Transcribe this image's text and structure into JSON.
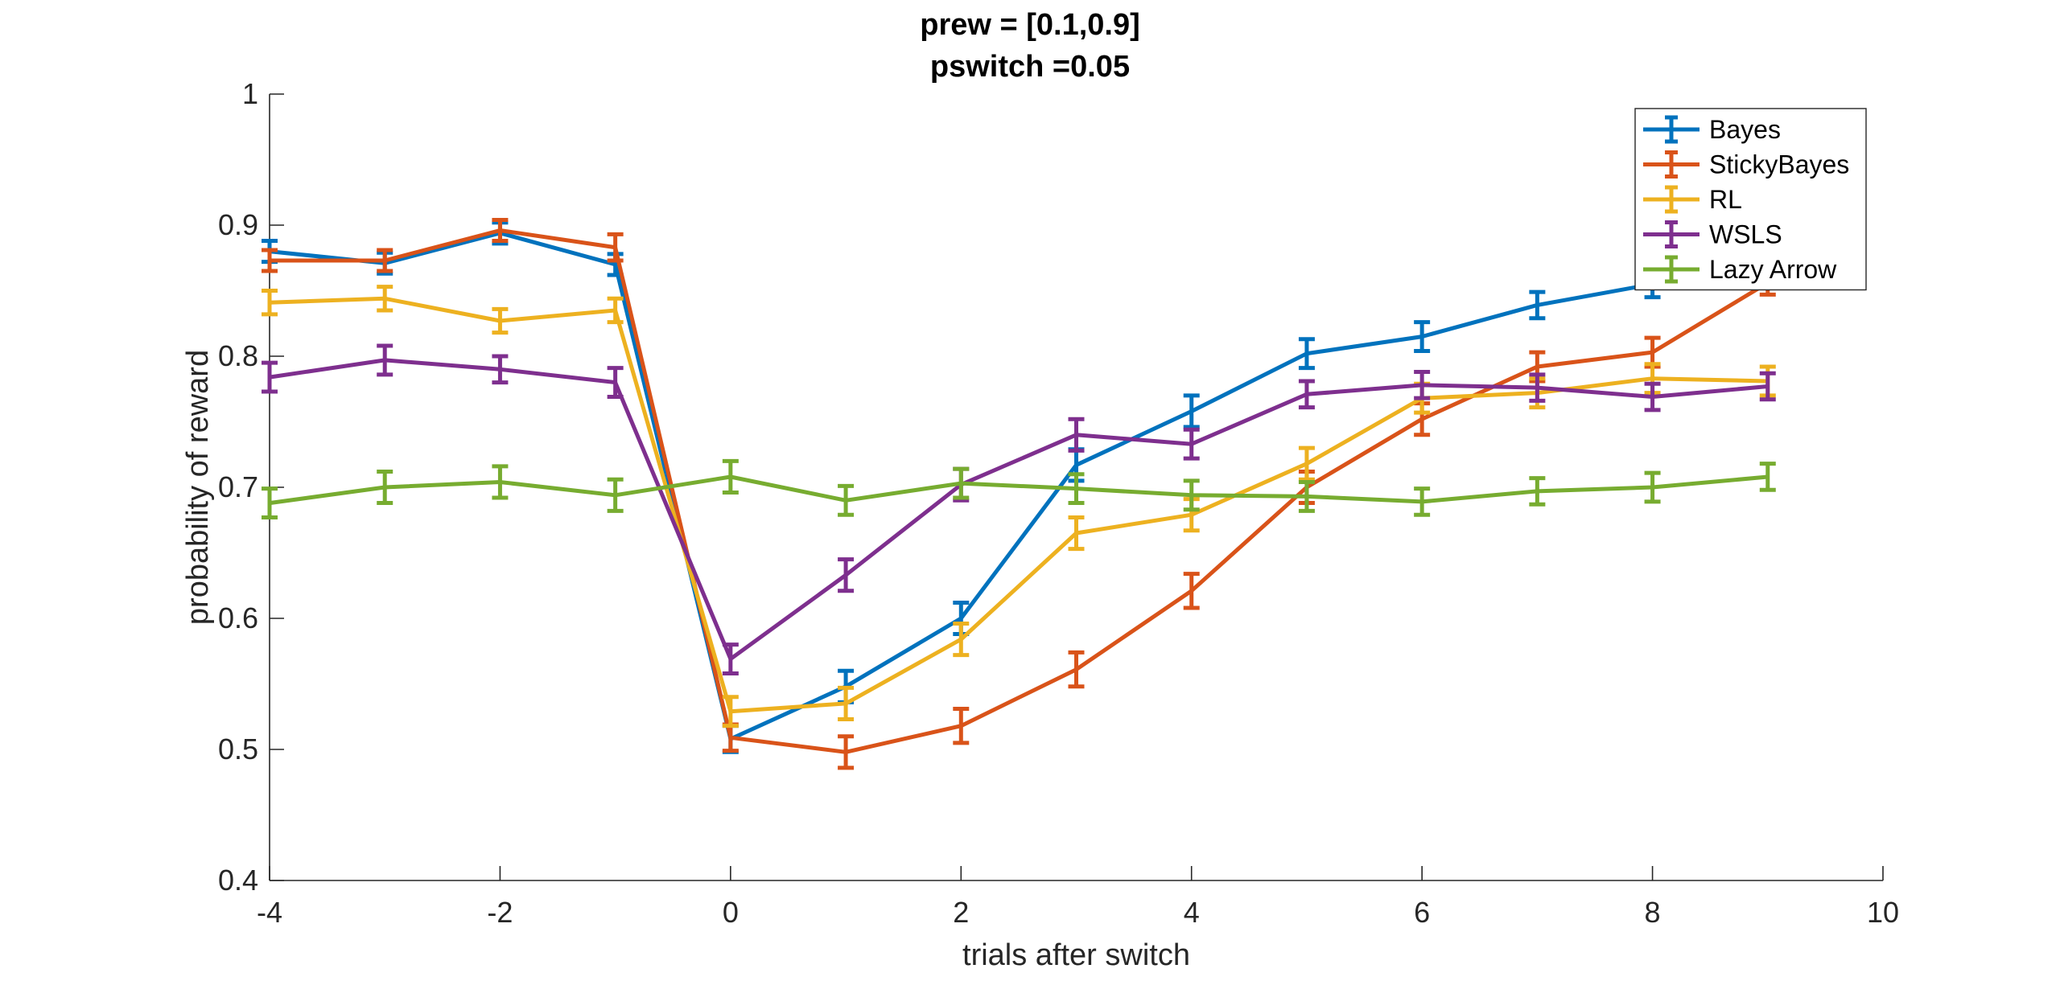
{
  "chart_data": {
    "type": "line",
    "title": [
      "prew = [0.1,0.9]",
      "pswitch =0.05"
    ],
    "xlabel": "trials after switch",
    "ylabel": "probability of reward",
    "xlim": [
      -4,
      10
    ],
    "ylim": [
      0.4,
      1
    ],
    "xticks": [
      -4,
      -2,
      0,
      2,
      4,
      6,
      8,
      10
    ],
    "yticks": [
      0.4,
      0.5,
      0.6,
      0.7,
      0.8,
      0.9,
      1
    ],
    "xtick_labels": [
      "-4",
      "-2",
      "0",
      "2",
      "4",
      "6",
      "8",
      "10"
    ],
    "ytick_labels": [
      "0.4",
      "0.5",
      "0.6",
      "0.7",
      "0.8",
      "0.9",
      "1"
    ],
    "grid": false,
    "legend_position": "top-right",
    "error_bars": true,
    "x": [
      -4,
      -3,
      -2,
      -1,
      0,
      1,
      2,
      3,
      4,
      5,
      6,
      7,
      8,
      9
    ],
    "series": [
      {
        "name": "Bayes",
        "color": "#0072BD",
        "values": [
          0.88,
          0.871,
          0.894,
          0.87,
          0.508,
          0.548,
          0.6,
          0.717,
          0.758,
          0.802,
          0.815,
          0.839,
          0.855,
          0.87
        ],
        "errors": [
          0.008,
          0.008,
          0.008,
          0.008,
          0.01,
          0.012,
          0.012,
          0.012,
          0.012,
          0.011,
          0.011,
          0.01,
          0.01,
          0.01
        ]
      },
      {
        "name": "StickyBayes",
        "color": "#D95319",
        "values": [
          0.873,
          0.873,
          0.896,
          0.883,
          0.509,
          0.498,
          0.518,
          0.561,
          0.621,
          0.7,
          0.752,
          0.792,
          0.803,
          0.856
        ],
        "errors": [
          0.008,
          0.008,
          0.008,
          0.01,
          0.01,
          0.012,
          0.013,
          0.013,
          0.013,
          0.012,
          0.012,
          0.011,
          0.011,
          0.009
        ]
      },
      {
        "name": "RL",
        "color": "#EDB120",
        "values": [
          0.841,
          0.844,
          0.827,
          0.835,
          0.529,
          0.535,
          0.584,
          0.665,
          0.679,
          0.718,
          0.768,
          0.772,
          0.783,
          0.781
        ],
        "errors": [
          0.009,
          0.009,
          0.009,
          0.009,
          0.011,
          0.012,
          0.012,
          0.012,
          0.012,
          0.012,
          0.011,
          0.011,
          0.011,
          0.011
        ]
      },
      {
        "name": "WSLS",
        "color": "#7E2F8E",
        "values": [
          0.784,
          0.797,
          0.79,
          0.78,
          0.569,
          0.633,
          0.702,
          0.74,
          0.733,
          0.771,
          0.778,
          0.776,
          0.769,
          0.777
        ],
        "errors": [
          0.011,
          0.011,
          0.01,
          0.011,
          0.011,
          0.012,
          0.012,
          0.012,
          0.011,
          0.01,
          0.01,
          0.01,
          0.01,
          0.01
        ]
      },
      {
        "name": "Lazy Arrow",
        "color": "#77AC30",
        "values": [
          0.688,
          0.7,
          0.704,
          0.694,
          0.708,
          0.69,
          0.703,
          0.699,
          0.694,
          0.693,
          0.689,
          0.697,
          0.7,
          0.708
        ],
        "errors": [
          0.011,
          0.012,
          0.012,
          0.012,
          0.012,
          0.011,
          0.011,
          0.011,
          0.011,
          0.011,
          0.01,
          0.01,
          0.011,
          0.01
        ]
      }
    ]
  }
}
